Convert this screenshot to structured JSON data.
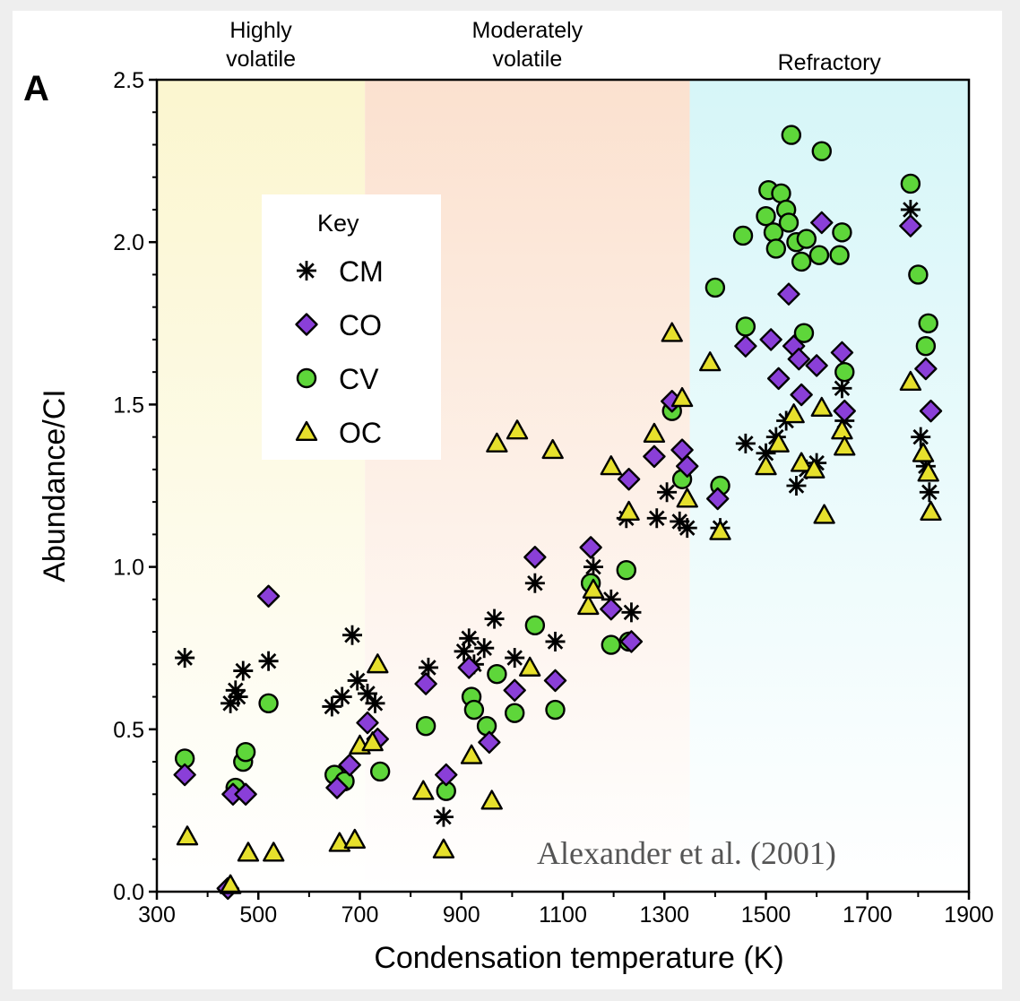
{
  "panel_letter": "A",
  "citation": "Alexander et al. (2001)",
  "colors": {
    "highly_volatile_bg": "#fbf6cf",
    "moderately_volatile_bg": "#fbe1cf",
    "refractory_bg": "#d6f6f8",
    "CO": "#8a3fd8",
    "CV": "#5ed63a",
    "OC": "#e6e02c",
    "CM": "#000000"
  },
  "chart_data": {
    "type": "scatter",
    "xlabel": "Condensation temperature (K)",
    "ylabel": "Abundance/CI",
    "xlim": [
      300,
      1900
    ],
    "ylim": [
      0,
      2.5
    ],
    "xticks": [
      "300",
      "500",
      "700",
      "900",
      "1100",
      "1300",
      "1500",
      "1700",
      "1900"
    ],
    "yticks": [
      "0.0",
      "0.5",
      "1.0",
      "1.5",
      "2.0",
      "2.5"
    ],
    "grid": false,
    "legend": {
      "title": "Key",
      "placement": "top-left",
      "entries": [
        "CM",
        "CO",
        "CV",
        "OC"
      ]
    },
    "regions": [
      {
        "label_lines": [
          "Highly",
          "volatile"
        ],
        "from": 300,
        "to": 710
      },
      {
        "label_lines": [
          "Moderately",
          "volatile"
        ],
        "from": 710,
        "to": 1350
      },
      {
        "label_lines": [
          "Refractory"
        ],
        "from": 1350,
        "to": 1900
      }
    ],
    "series": [
      {
        "name": "CM",
        "marker": "asterisk",
        "points": [
          [
            355,
            0.72
          ],
          [
            445,
            0.58
          ],
          [
            455,
            0.62
          ],
          [
            470,
            0.68
          ],
          [
            520,
            0.71
          ],
          [
            460,
            0.6
          ],
          [
            645,
            0.57
          ],
          [
            665,
            0.6
          ],
          [
            685,
            0.79
          ],
          [
            695,
            0.65
          ],
          [
            715,
            0.61
          ],
          [
            730,
            0.58
          ],
          [
            835,
            0.69
          ],
          [
            865,
            0.23
          ],
          [
            905,
            0.74
          ],
          [
            915,
            0.78
          ],
          [
            925,
            0.7
          ],
          [
            945,
            0.75
          ],
          [
            965,
            0.84
          ],
          [
            1005,
            0.72
          ],
          [
            1045,
            0.95
          ],
          [
            1085,
            0.77
          ],
          [
            1160,
            1.0
          ],
          [
            1195,
            0.9
          ],
          [
            1225,
            1.15
          ],
          [
            1235,
            0.86
          ],
          [
            1285,
            1.15
          ],
          [
            1305,
            1.23
          ],
          [
            1330,
            1.14
          ],
          [
            1345,
            1.12
          ],
          [
            1410,
            1.12
          ],
          [
            1460,
            1.38
          ],
          [
            1500,
            1.35
          ],
          [
            1520,
            1.4
          ],
          [
            1540,
            1.45
          ],
          [
            1560,
            1.25
          ],
          [
            1580,
            1.3
          ],
          [
            1600,
            1.32
          ],
          [
            1650,
            1.55
          ],
          [
            1655,
            1.45
          ],
          [
            1785,
            2.1
          ],
          [
            1805,
            1.4
          ],
          [
            1815,
            1.31
          ],
          [
            1822,
            1.23
          ]
        ]
      },
      {
        "name": "CO",
        "marker": "diamond",
        "points": [
          [
            355,
            0.36
          ],
          [
            440,
            0.01
          ],
          [
            450,
            0.3
          ],
          [
            475,
            0.3
          ],
          [
            520,
            0.91
          ],
          [
            655,
            0.32
          ],
          [
            680,
            0.39
          ],
          [
            715,
            0.52
          ],
          [
            735,
            0.47
          ],
          [
            830,
            0.64
          ],
          [
            870,
            0.36
          ],
          [
            915,
            0.69
          ],
          [
            955,
            0.46
          ],
          [
            1005,
            0.62
          ],
          [
            1045,
            1.03
          ],
          [
            1085,
            0.65
          ],
          [
            1155,
            1.06
          ],
          [
            1195,
            0.87
          ],
          [
            1230,
            1.27
          ],
          [
            1235,
            0.77
          ],
          [
            1280,
            1.34
          ],
          [
            1315,
            1.51
          ],
          [
            1335,
            1.36
          ],
          [
            1345,
            1.31
          ],
          [
            1405,
            1.21
          ],
          [
            1460,
            1.68
          ],
          [
            1510,
            1.7
          ],
          [
            1525,
            1.58
          ],
          [
            1545,
            1.84
          ],
          [
            1555,
            1.68
          ],
          [
            1565,
            1.64
          ],
          [
            1570,
            1.53
          ],
          [
            1600,
            1.62
          ],
          [
            1610,
            2.06
          ],
          [
            1650,
            1.66
          ],
          [
            1655,
            1.48
          ],
          [
            1785,
            2.05
          ],
          [
            1815,
            1.61
          ],
          [
            1825,
            1.48
          ]
        ]
      },
      {
        "name": "CV",
        "marker": "circle",
        "points": [
          [
            355,
            0.41
          ],
          [
            455,
            0.32
          ],
          [
            470,
            0.4
          ],
          [
            475,
            0.43
          ],
          [
            520,
            0.58
          ],
          [
            650,
            0.36
          ],
          [
            670,
            0.34
          ],
          [
            740,
            0.37
          ],
          [
            830,
            0.51
          ],
          [
            870,
            0.31
          ],
          [
            920,
            0.6
          ],
          [
            925,
            0.56
          ],
          [
            950,
            0.51
          ],
          [
            970,
            0.67
          ],
          [
            1005,
            0.55
          ],
          [
            1045,
            0.82
          ],
          [
            1085,
            0.56
          ],
          [
            1155,
            0.95
          ],
          [
            1195,
            0.76
          ],
          [
            1225,
            0.99
          ],
          [
            1230,
            0.77
          ],
          [
            1315,
            1.48
          ],
          [
            1335,
            1.27
          ],
          [
            1410,
            1.25
          ],
          [
            1400,
            1.86
          ],
          [
            1455,
            2.02
          ],
          [
            1460,
            1.74
          ],
          [
            1500,
            2.08
          ],
          [
            1505,
            2.16
          ],
          [
            1515,
            2.03
          ],
          [
            1520,
            1.98
          ],
          [
            1530,
            2.15
          ],
          [
            1540,
            2.1
          ],
          [
            1545,
            2.06
          ],
          [
            1550,
            2.33
          ],
          [
            1560,
            2.0
          ],
          [
            1570,
            1.94
          ],
          [
            1575,
            1.72
          ],
          [
            1580,
            2.01
          ],
          [
            1605,
            1.96
          ],
          [
            1610,
            2.28
          ],
          [
            1650,
            2.03
          ],
          [
            1645,
            1.96
          ],
          [
            1655,
            1.6
          ],
          [
            1785,
            2.18
          ],
          [
            1800,
            1.9
          ],
          [
            1815,
            1.68
          ],
          [
            1820,
            1.75
          ]
        ]
      },
      {
        "name": "OC",
        "marker": "triangle",
        "points": [
          [
            360,
            0.17
          ],
          [
            445,
            0.02
          ],
          [
            480,
            0.12
          ],
          [
            530,
            0.12
          ],
          [
            660,
            0.15
          ],
          [
            690,
            0.16
          ],
          [
            700,
            0.45
          ],
          [
            735,
            0.7
          ],
          [
            725,
            0.46
          ],
          [
            825,
            0.31
          ],
          [
            865,
            0.13
          ],
          [
            920,
            0.42
          ],
          [
            960,
            0.28
          ],
          [
            970,
            1.38
          ],
          [
            1010,
            1.42
          ],
          [
            1035,
            0.69
          ],
          [
            1080,
            1.36
          ],
          [
            1150,
            0.88
          ],
          [
            1160,
            0.93
          ],
          [
            1195,
            1.31
          ],
          [
            1230,
            1.17
          ],
          [
            1280,
            1.41
          ],
          [
            1315,
            1.72
          ],
          [
            1335,
            1.52
          ],
          [
            1345,
            1.21
          ],
          [
            1390,
            1.63
          ],
          [
            1410,
            1.11
          ],
          [
            1500,
            1.31
          ],
          [
            1525,
            1.38
          ],
          [
            1555,
            1.47
          ],
          [
            1570,
            1.32
          ],
          [
            1595,
            1.3
          ],
          [
            1610,
            1.49
          ],
          [
            1615,
            1.16
          ],
          [
            1650,
            1.42
          ],
          [
            1655,
            1.37
          ],
          [
            1785,
            1.57
          ],
          [
            1810,
            1.35
          ],
          [
            1820,
            1.29
          ],
          [
            1825,
            1.17
          ]
        ]
      }
    ]
  }
}
